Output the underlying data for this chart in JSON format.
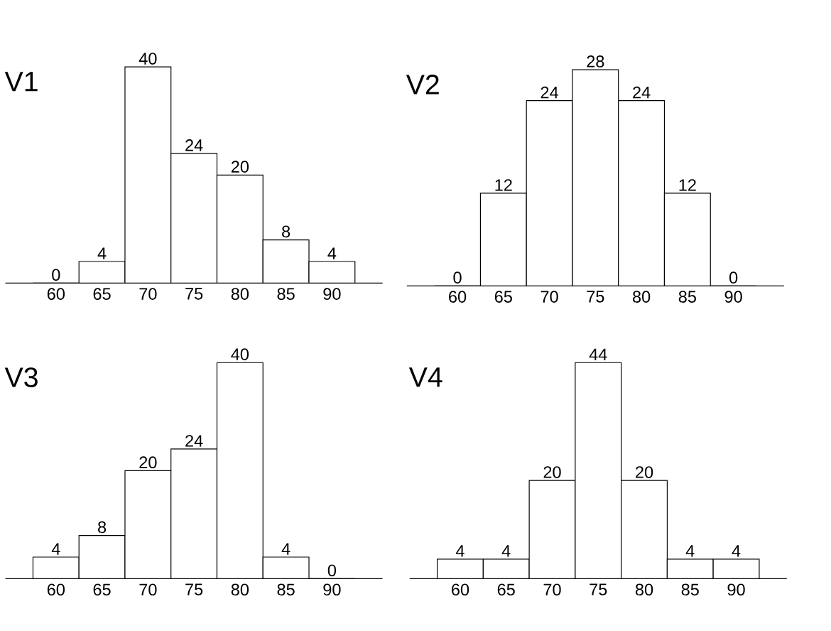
{
  "chart_data": [
    {
      "type": "bar",
      "title": "V1",
      "categories": [
        "60",
        "65",
        "70",
        "75",
        "80",
        "85",
        "90"
      ],
      "values": [
        0,
        4,
        40,
        24,
        20,
        8,
        4
      ],
      "color": "#ffffff",
      "data_labels": true,
      "tick_labels": "x"
    },
    {
      "type": "bar",
      "title": "V2",
      "categories": [
        "60",
        "65",
        "70",
        "75",
        "80",
        "85",
        "90"
      ],
      "values": [
        0,
        12,
        24,
        28,
        24,
        12,
        0
      ],
      "color": "#ffffff",
      "data_labels": true,
      "tick_labels": "x"
    },
    {
      "type": "bar",
      "title": "V3",
      "categories": [
        "60",
        "65",
        "70",
        "75",
        "80",
        "85",
        "90"
      ],
      "values": [
        4,
        8,
        20,
        24,
        40,
        4,
        0
      ],
      "color": "#ffffff",
      "data_labels": true,
      "tick_labels": "x"
    },
    {
      "type": "bar",
      "title": "V4",
      "categories": [
        "60",
        "65",
        "70",
        "75",
        "80",
        "85",
        "90"
      ],
      "values": [
        4,
        4,
        20,
        44,
        20,
        4,
        4
      ],
      "color": "#ffffff",
      "data_labels": true,
      "tick_labels": "x"
    }
  ]
}
